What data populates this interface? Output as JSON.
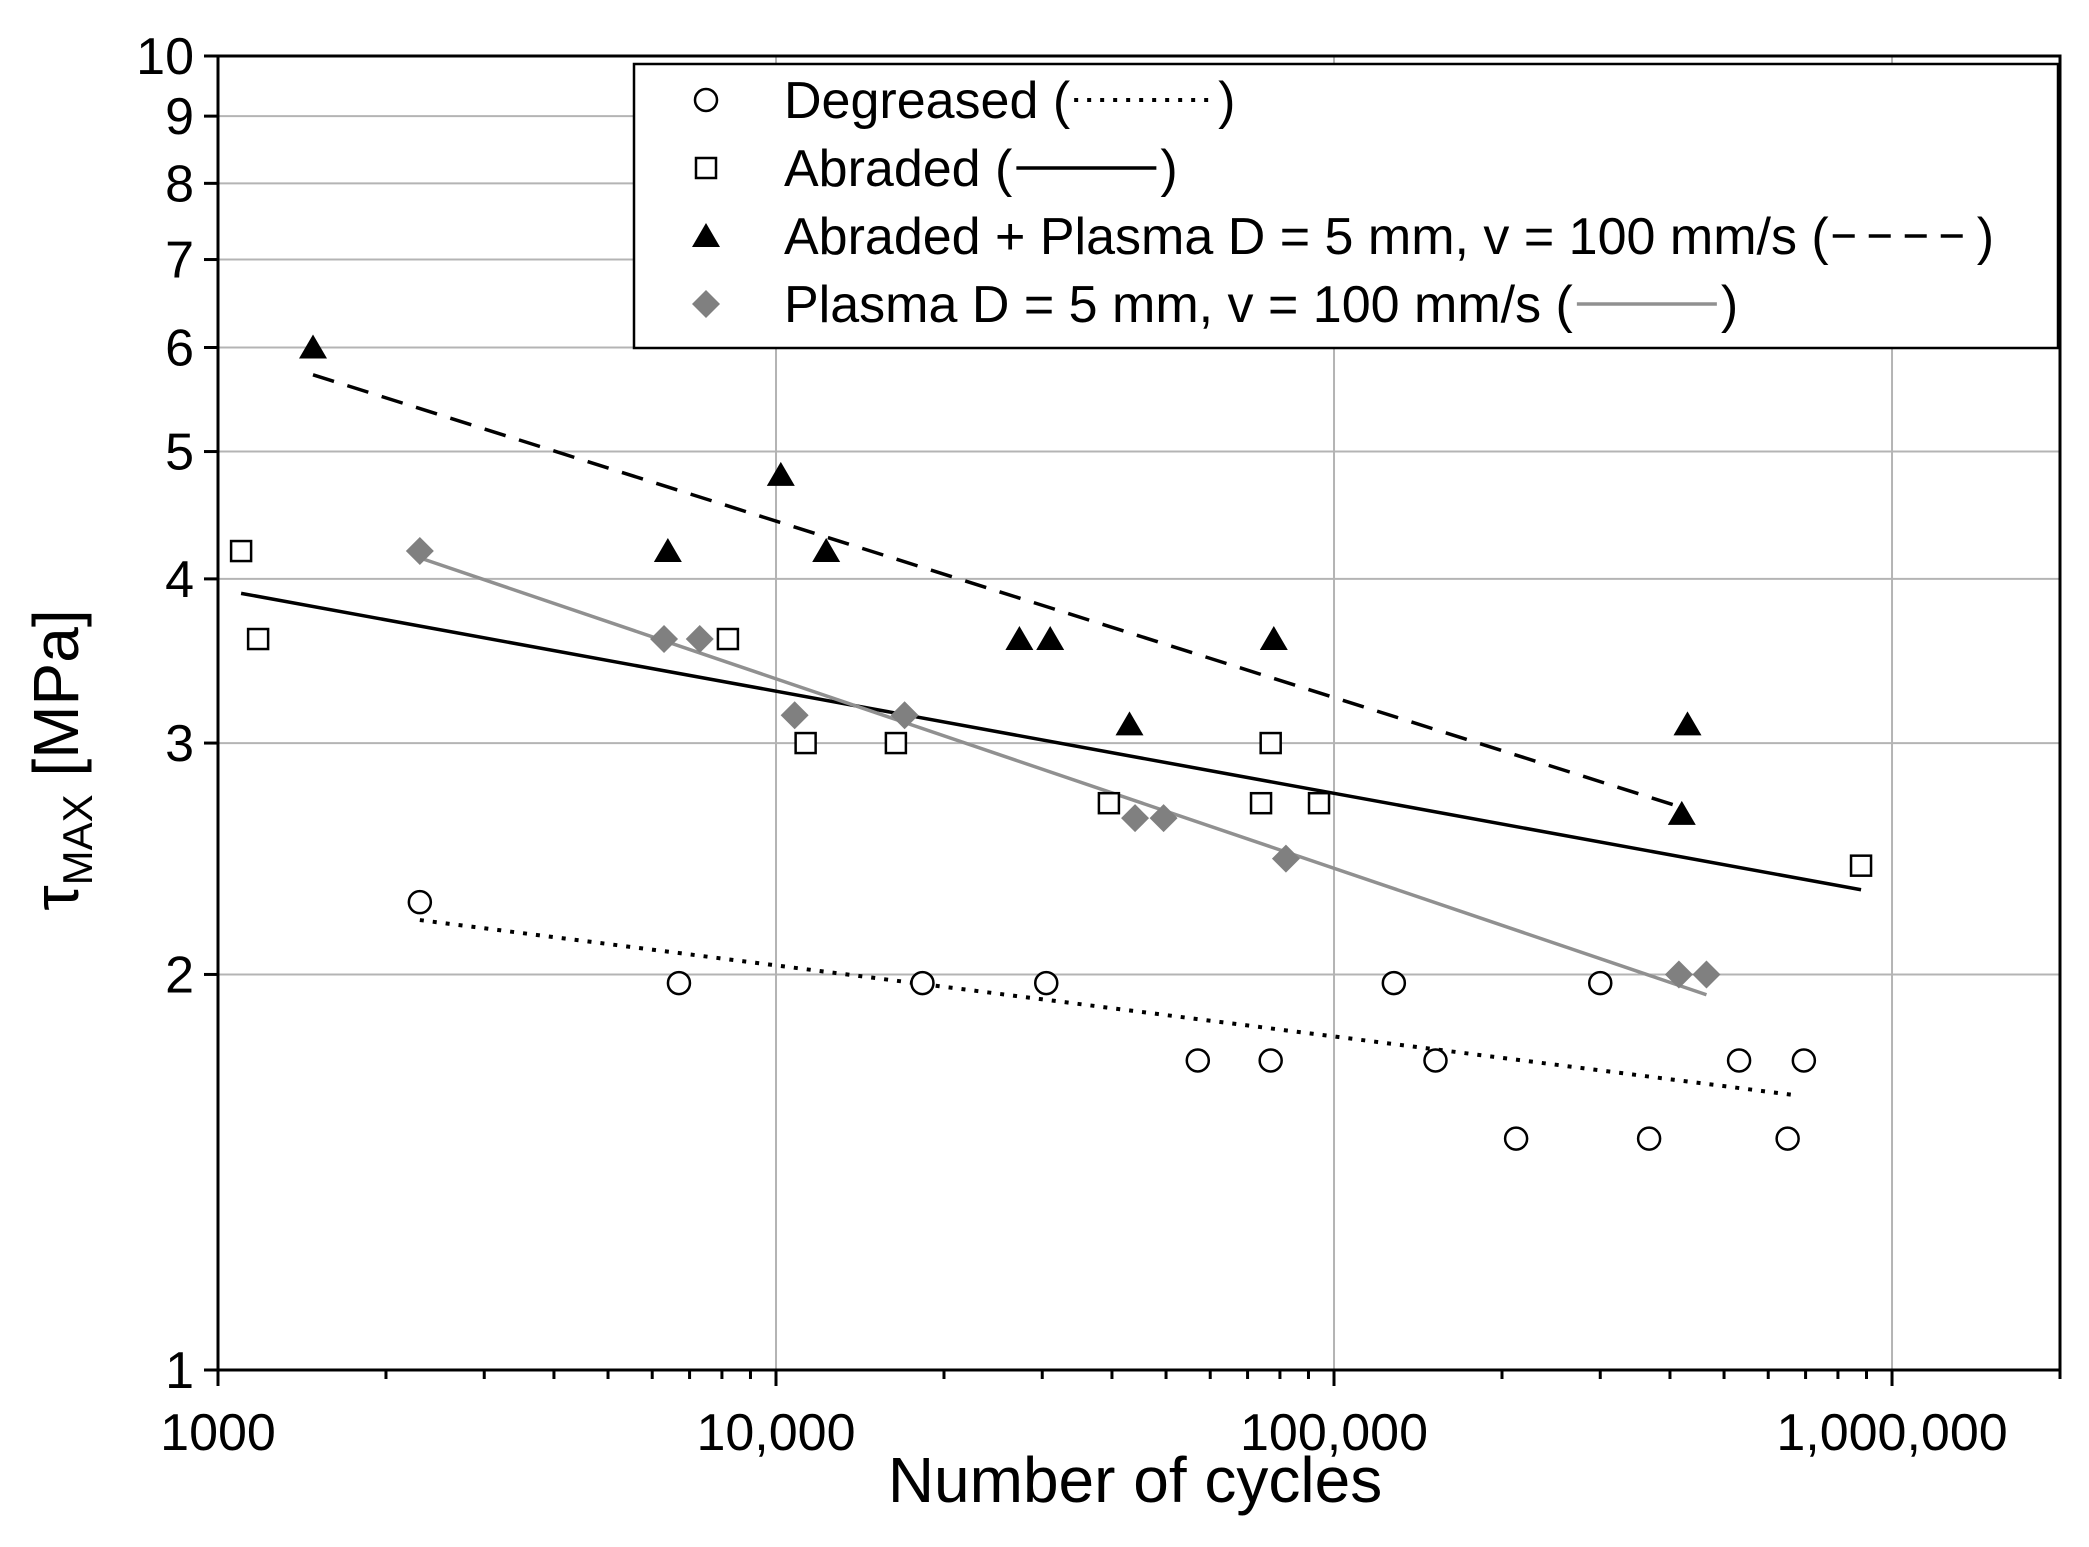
{
  "chart_data": {
    "type": "scatter",
    "xscale": "log",
    "yscale": "log",
    "xlim": [
      1000,
      2000000
    ],
    "ylim": [
      1,
      10
    ],
    "xlabel": "Number of cycles",
    "ylabel_main": "τ",
    "ylabel_sub": "MAX",
    "ylabel_unit": " [MPa]",
    "x_ticks": [
      {
        "value": 1000,
        "label": "1000"
      },
      {
        "value": 10000,
        "label": "10,000"
      },
      {
        "value": 100000,
        "label": "100,000"
      },
      {
        "value": 1000000,
        "label": "1,000,000"
      }
    ],
    "y_ticks": [
      {
        "value": 1,
        "label": "1"
      },
      {
        "value": 2,
        "label": "2"
      },
      {
        "value": 3,
        "label": "3"
      },
      {
        "value": 4,
        "label": "4"
      },
      {
        "value": 5,
        "label": "5"
      },
      {
        "value": 6,
        "label": "6"
      },
      {
        "value": 7,
        "label": "7"
      },
      {
        "value": 8,
        "label": "8"
      },
      {
        "value": 9,
        "label": "9"
      },
      {
        "value": 10,
        "label": "10"
      }
    ],
    "grid_x": [
      1000,
      10000,
      100000,
      1000000
    ],
    "grid_y": [
      2,
      3,
      4,
      5,
      6,
      7,
      8,
      9
    ],
    "legend_position": "top-right",
    "series": [
      {
        "name": "Degreased",
        "legend_label": "Degreased (",
        "marker": "circle-open",
        "color": "#000000",
        "line_style": "dotted",
        "line_color": "#000000",
        "points": [
          [
            2300,
            2.27
          ],
          [
            6700,
            1.97
          ],
          [
            18300,
            1.97
          ],
          [
            30500,
            1.97
          ],
          [
            57000,
            1.72
          ],
          [
            77000,
            1.72
          ],
          [
            128000,
            1.97
          ],
          [
            152000,
            1.72
          ],
          [
            212000,
            1.5
          ],
          [
            300000,
            1.97
          ],
          [
            367000,
            1.5
          ],
          [
            532000,
            1.72
          ],
          [
            650000,
            1.5
          ],
          [
            695000,
            1.72
          ]
        ],
        "fit": [
          [
            2300,
            2.2
          ],
          [
            660000,
            1.62
          ]
        ]
      },
      {
        "name": "Abraded",
        "legend_label": "Abraded (",
        "marker": "square-open",
        "color": "#000000",
        "line_style": "solid",
        "line_color": "#000000",
        "points": [
          [
            1100,
            4.2
          ],
          [
            1180,
            3.6
          ],
          [
            8200,
            3.6
          ],
          [
            11300,
            3.0
          ],
          [
            16400,
            3.0
          ],
          [
            39500,
            2.7
          ],
          [
            74000,
            2.7
          ],
          [
            77000,
            3.0
          ],
          [
            94000,
            2.7
          ],
          [
            880000,
            2.42
          ]
        ],
        "fit": [
          [
            1100,
            3.9
          ],
          [
            880000,
            2.32
          ]
        ]
      },
      {
        "name": "Abraded + Plasma D = 5 mm, v = 100 mm/s",
        "legend_label": "Abraded + Plasma D = 5 mm, v = 100 mm/s (",
        "marker": "triangle-filled",
        "color": "#000000",
        "line_style": "dashed",
        "line_color": "#000000",
        "points": [
          [
            1480,
            6.0
          ],
          [
            6400,
            4.2
          ],
          [
            10200,
            4.8
          ],
          [
            12300,
            4.2
          ],
          [
            27300,
            3.6
          ],
          [
            31000,
            3.6
          ],
          [
            43000,
            3.1
          ],
          [
            78000,
            3.6
          ],
          [
            420000,
            2.65
          ],
          [
            430000,
            3.1
          ]
        ],
        "fit": [
          [
            1480,
            5.72
          ],
          [
            420000,
            2.68
          ]
        ]
      },
      {
        "name": "Plasma D = 5 mm, v = 100 mm/s",
        "legend_label": "Plasma D = 5 mm, v = 100 mm/s (",
        "marker": "diamond-filled",
        "color": "#808080",
        "line_style": "solid",
        "line_color": "#909090",
        "points": [
          [
            2300,
            4.2
          ],
          [
            6300,
            3.6
          ],
          [
            7300,
            3.6
          ],
          [
            10800,
            3.15
          ],
          [
            17000,
            3.15
          ],
          [
            44000,
            2.63
          ],
          [
            49500,
            2.63
          ],
          [
            82000,
            2.45
          ],
          [
            415000,
            2.0
          ],
          [
            465000,
            2.0
          ]
        ],
        "fit": [
          [
            2300,
            4.15
          ],
          [
            465000,
            1.93
          ]
        ]
      }
    ],
    "legend_close": ")"
  }
}
